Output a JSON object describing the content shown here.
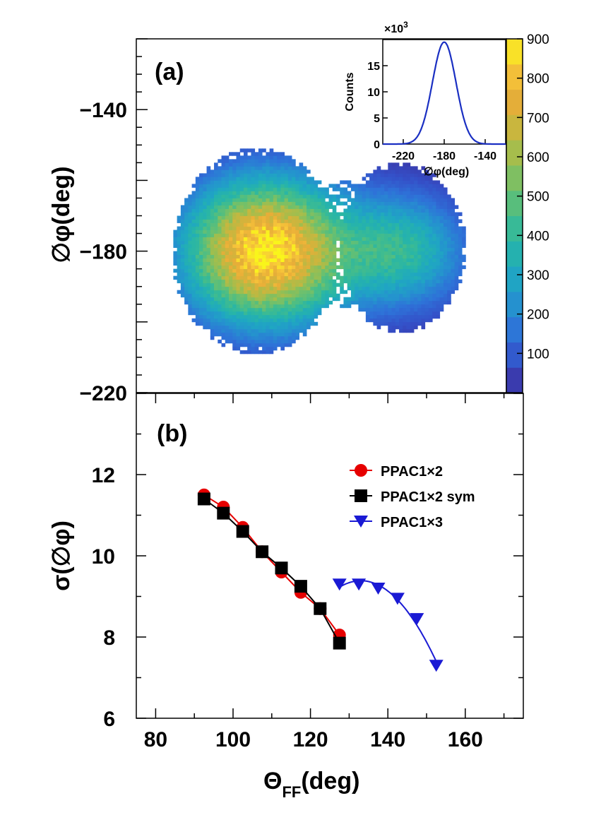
{
  "chart_data": [
    {
      "panel": "(a)",
      "type": "heatmap",
      "ylabel": "∅φ(deg)",
      "xrange": [
        75,
        175
      ],
      "yrange": [
        -220,
        -120
      ],
      "y_ticks": [
        -140,
        -180,
        -220
      ],
      "colorbar": {
        "range": [
          0,
          900
        ],
        "ticks": [
          100,
          200,
          300,
          400,
          500,
          600,
          700,
          800,
          900
        ],
        "colors": [
          "#3e2c9a",
          "#3450c8",
          "#2e72d8",
          "#2591cf",
          "#1fa7c2",
          "#27b5a8",
          "#45bd8a",
          "#72c06a",
          "#a0be4e",
          "#c9b63e",
          "#e8ad38",
          "#f8c63a",
          "#f9f51b"
        ]
      },
      "blobs": [
        {
          "center_x": 110,
          "center_y": -180,
          "peak": 900
        },
        {
          "center_x": 147,
          "center_y": -180,
          "peak": 380
        }
      ],
      "inset": {
        "type": "line",
        "exponent_label": "×10",
        "exponent_power": "3",
        "ylabel": "Counts",
        "xlabel": "∅φ(deg)",
        "xlim": [
          -240,
          -120
        ],
        "ylim": [
          0,
          20
        ],
        "x_ticks": [
          -220,
          -180,
          -140
        ],
        "y_ticks": [
          0,
          5,
          10,
          15
        ],
        "gauss_mean": -180,
        "gauss_sigma": 11.5,
        "gauss_peak": 19.5,
        "color": "#1a2fc2"
      }
    },
    {
      "panel": "(b)",
      "type": "line",
      "xlabel": "Θ",
      "xlabel_sub": "FF",
      "xlabel_unit": "(deg)",
      "ylabel": "σ(∅φ)",
      "xlim": [
        75,
        175
      ],
      "ylim": [
        6,
        14
      ],
      "x_ticks": [
        80,
        100,
        120,
        140,
        160
      ],
      "y_ticks": [
        6,
        8,
        10,
        12
      ],
      "series": [
        {
          "name": "PPAC1×2",
          "marker": "circle",
          "color": "#e60000",
          "x": [
            92.5,
            97.5,
            102.5,
            107.5,
            112.5,
            117.5,
            122.5,
            127.5
          ],
          "y": [
            11.5,
            11.2,
            10.7,
            10.1,
            9.6,
            9.1,
            8.7,
            8.05
          ]
        },
        {
          "name": "PPAC1×2 sym",
          "marker": "square",
          "color": "#000000",
          "x": [
            92.5,
            97.5,
            102.5,
            107.5,
            112.5,
            117.5,
            122.5,
            127.5
          ],
          "y": [
            11.4,
            11.05,
            10.6,
            10.1,
            9.7,
            9.25,
            8.7,
            7.85
          ]
        },
        {
          "name": "PPAC1×3",
          "marker": "triangle-down",
          "color": "#1a1ad4",
          "x": [
            127.5,
            132.5,
            137.5,
            142.5,
            147.5,
            152.5
          ],
          "y": [
            9.3,
            9.3,
            9.2,
            8.95,
            8.45,
            7.3
          ]
        }
      ]
    }
  ]
}
